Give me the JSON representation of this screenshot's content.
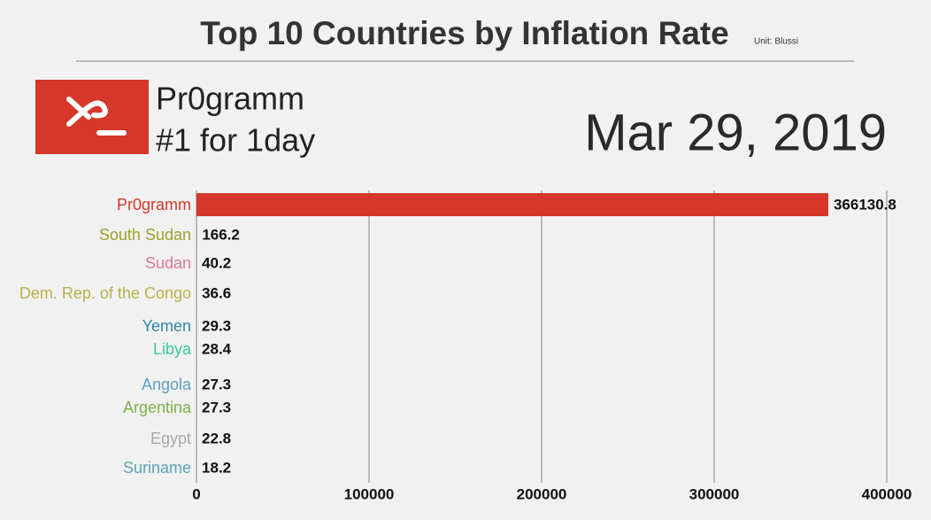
{
  "chart_data": {
    "type": "bar",
    "orientation": "horizontal",
    "title": "Top 10 Countries by Inflation Rate",
    "unit_note": "Unit: Blussi",
    "leader_name": "Pr0gramm",
    "leader_caption": "#1 for 1day",
    "date": "Mar 29, 2019",
    "categories": [
      "Pr0gramm",
      "South Sudan",
      "Sudan",
      "Dem. Rep. of the Congo",
      "Yemen",
      "Libya",
      "Angola",
      "Argentina",
      "Egypt",
      "Suriname"
    ],
    "values": [
      366130.8,
      166.2,
      40.2,
      36.6,
      29.3,
      28.4,
      27.3,
      27.3,
      22.8,
      18.2
    ],
    "colors": [
      "#d5372a",
      "#9aa32a",
      "#d77a9a",
      "#b5b34a",
      "#2e86a8",
      "#3bc99a",
      "#5a9fc0",
      "#7ab04a",
      "#aaaaaa",
      "#5ba3b5"
    ],
    "xlim": [
      0,
      400000
    ],
    "xticks": [
      0,
      100000,
      200000,
      300000,
      400000
    ],
    "grid": true
  }
}
